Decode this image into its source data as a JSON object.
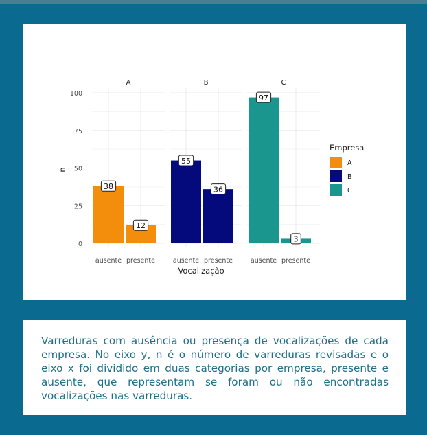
{
  "chart_data": {
    "type": "bar",
    "facets": [
      "A",
      "B",
      "C"
    ],
    "categories": [
      "ausente",
      "presente"
    ],
    "series": [
      {
        "name": "A",
        "color": "#f28e0c",
        "values": [
          38,
          12
        ]
      },
      {
        "name": "B",
        "color": "#040a7c",
        "values": [
          55,
          36
        ]
      },
      {
        "name": "C",
        "color": "#1b968e",
        "values": [
          97,
          3
        ]
      }
    ],
    "ylim": [
      0,
      100
    ],
    "yticks": [
      0,
      25,
      50,
      75,
      100
    ],
    "xlabel": "Vocalização",
    "ylabel": "n",
    "legend_title": "Empresa",
    "legend_position": "right",
    "grid": true
  },
  "caption": {
    "text": "Varreduras com ausência ou presença de vocalizações de cada empresa. No eixo y, n é o número de varreduras revisadas e o eixo x foi dividido em duas categorias por empresa, presente e ausente, que representam se foram ou não encontradas vocalizações nas varreduras."
  }
}
